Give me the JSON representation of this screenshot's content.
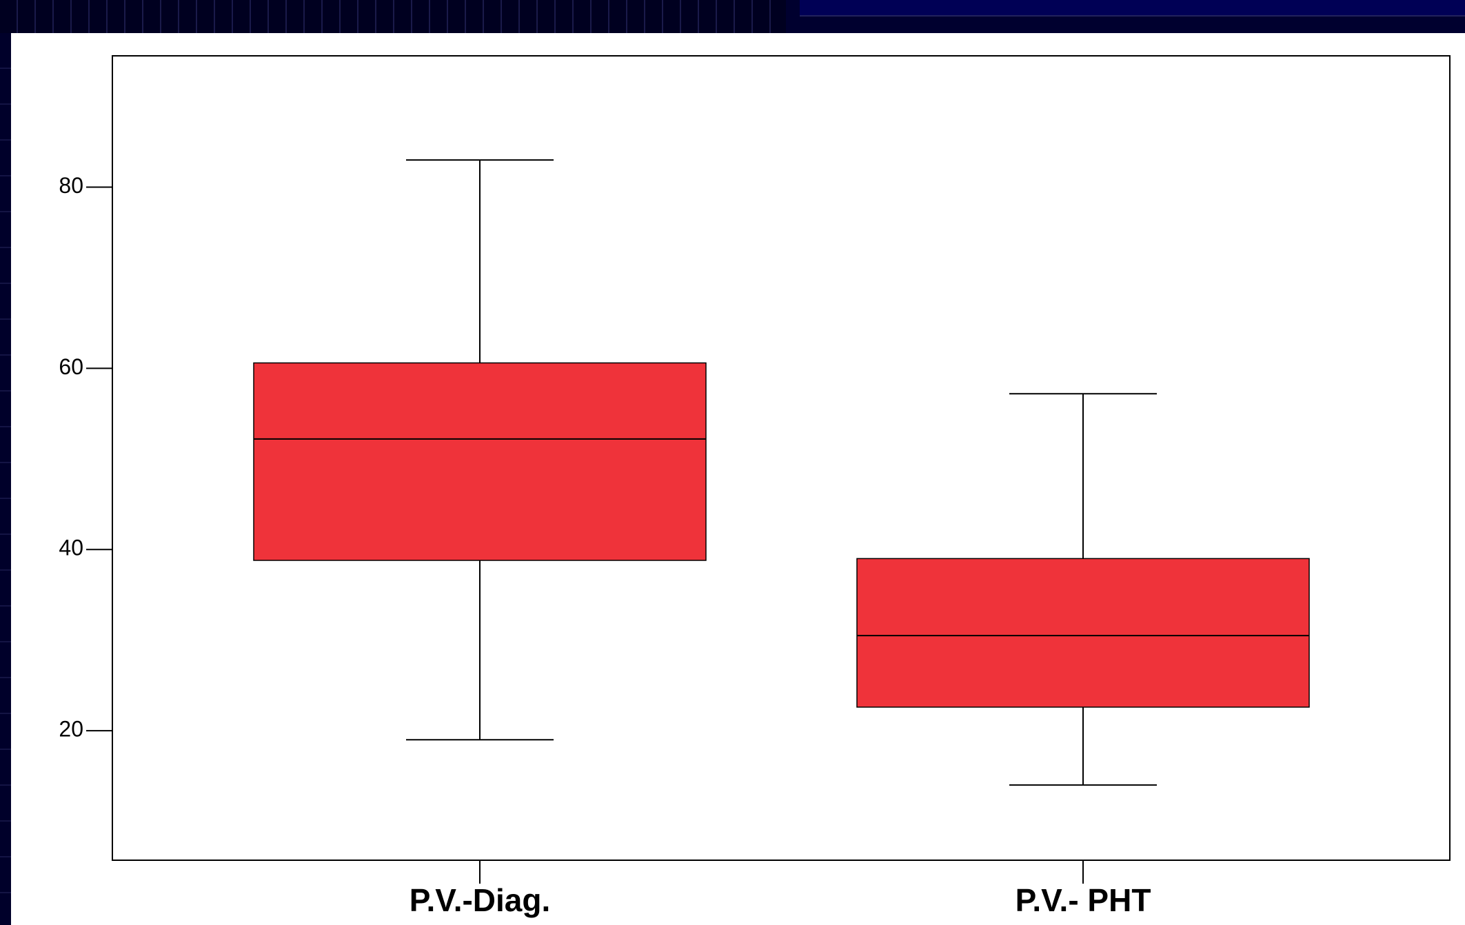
{
  "chart_data": {
    "type": "boxplot",
    "categories": [
      "P.V.-Diag.",
      "P.V.- PHT"
    ],
    "boxes": [
      {
        "category": "P.V.-Diag.",
        "min": 19,
        "q1": 38.8,
        "median": 52.2,
        "q3": 60.6,
        "max": 83
      },
      {
        "category": "P.V.- PHT",
        "min": 14,
        "q1": 22.6,
        "median": 30.5,
        "q3": 39,
        "max": 57.2
      }
    ],
    "y_ticks": [
      20,
      40,
      60,
      80
    ],
    "y_tick_labels": [
      "20",
      "40",
      "60",
      "80"
    ],
    "ylim": [
      5.7,
      94.5
    ],
    "grid": false,
    "box_color": "#ef333a",
    "title": "",
    "xlabel": "",
    "ylabel": ""
  }
}
